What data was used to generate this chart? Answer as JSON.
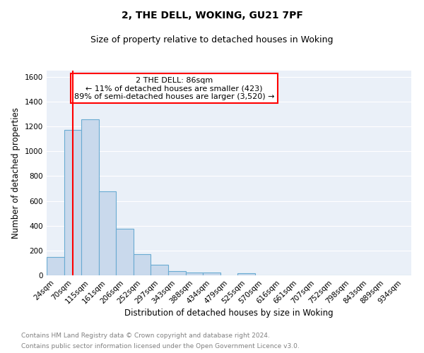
{
  "title": "2, THE DELL, WOKING, GU21 7PF",
  "subtitle": "Size of property relative to detached houses in Woking",
  "xlabel": "Distribution of detached houses by size in Woking",
  "ylabel": "Number of detached properties",
  "categories": [
    "24sqm",
    "70sqm",
    "115sqm",
    "161sqm",
    "206sqm",
    "252sqm",
    "297sqm",
    "343sqm",
    "388sqm",
    "434sqm",
    "479sqm",
    "525sqm",
    "570sqm",
    "616sqm",
    "661sqm",
    "707sqm",
    "752sqm",
    "798sqm",
    "843sqm",
    "889sqm",
    "934sqm"
  ],
  "values": [
    148,
    1170,
    1260,
    675,
    375,
    170,
    88,
    35,
    25,
    20,
    0,
    18,
    0,
    0,
    0,
    0,
    0,
    0,
    0,
    0,
    0
  ],
  "bar_color": "#c9d9ec",
  "bar_edge_color": "#6aabd2",
  "red_line_x": 1.0,
  "annotation_text": "2 THE DELL: 86sqm\n← 11% of detached houses are smaller (423)\n89% of semi-detached houses are larger (3,520) →",
  "annotation_box_color": "white",
  "annotation_box_edge_color": "red",
  "ylim": [
    0,
    1650
  ],
  "yticks": [
    0,
    200,
    400,
    600,
    800,
    1000,
    1200,
    1400,
    1600
  ],
  "footer_line1": "Contains HM Land Registry data © Crown copyright and database right 2024.",
  "footer_line2": "Contains public sector information licensed under the Open Government Licence v3.0.",
  "bg_color": "#eaf0f8",
  "grid_color": "white",
  "title_fontsize": 10,
  "subtitle_fontsize": 9,
  "xlabel_fontsize": 8.5,
  "ylabel_fontsize": 8.5,
  "tick_fontsize": 7.5,
  "annotation_fontsize": 8,
  "footer_fontsize": 6.5
}
